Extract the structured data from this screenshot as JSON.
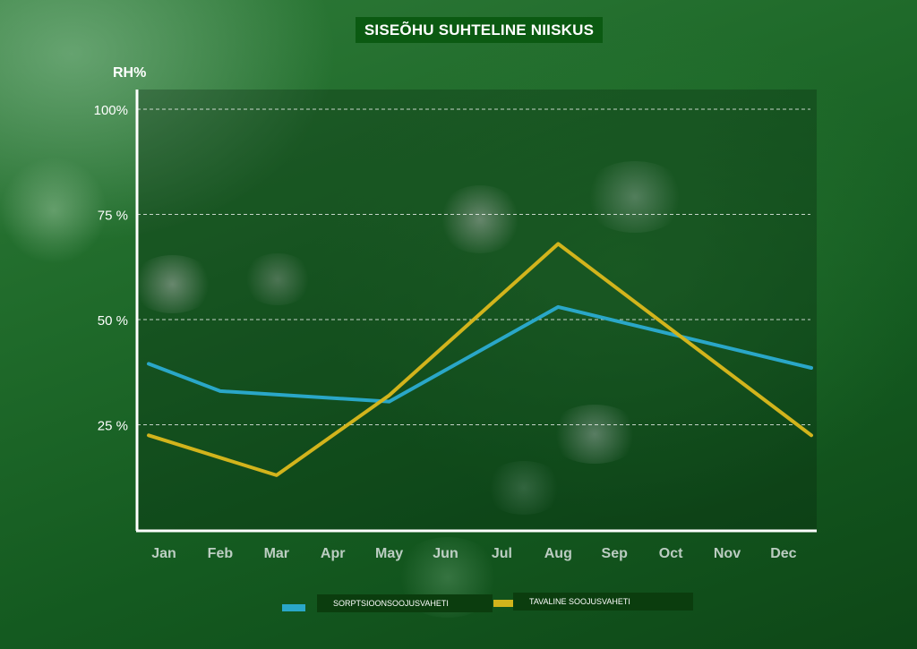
{
  "chart_data": {
    "type": "line",
    "title": "SISEÕHU SUHTELINE NIISKUS",
    "ylabel": "RH%",
    "xlabel": "",
    "categories": [
      "Jan",
      "Feb",
      "Mar",
      "Apr",
      "May",
      "Jun",
      "Jul",
      "Aug",
      "Sep",
      "Oct",
      "Nov",
      "Dec"
    ],
    "yticks": [
      {
        "value": 25,
        "label": "25 %"
      },
      {
        "value": 50,
        "label": "50 %"
      },
      {
        "value": 75,
        "label": "75 %"
      },
      {
        "value": 100,
        "label": "100%"
      }
    ],
    "ylim": [
      0,
      105
    ],
    "grid": true,
    "legend_position": "bottom",
    "series": [
      {
        "name": "SORPTSIOONSOOJUSVAHETI",
        "color": "#2aa7c8",
        "points": [
          {
            "x": "Jan",
            "y": 39.5
          },
          {
            "x": "Feb",
            "y": 33
          },
          {
            "x": "May",
            "y": 30.5
          },
          {
            "x": "Aug",
            "y": 53
          },
          {
            "x": "Dec",
            "y": 38.5
          }
        ]
      },
      {
        "name": "TAVALINE SOOJUSVAHETI",
        "color": "#d2b41c",
        "points": [
          {
            "x": "Jan",
            "y": 22.5
          },
          {
            "x": "Mar",
            "y": 13
          },
          {
            "x": "May",
            "y": 32
          },
          {
            "x": "Aug",
            "y": 68
          },
          {
            "x": "Dec",
            "y": 22.5
          }
        ]
      }
    ]
  }
}
